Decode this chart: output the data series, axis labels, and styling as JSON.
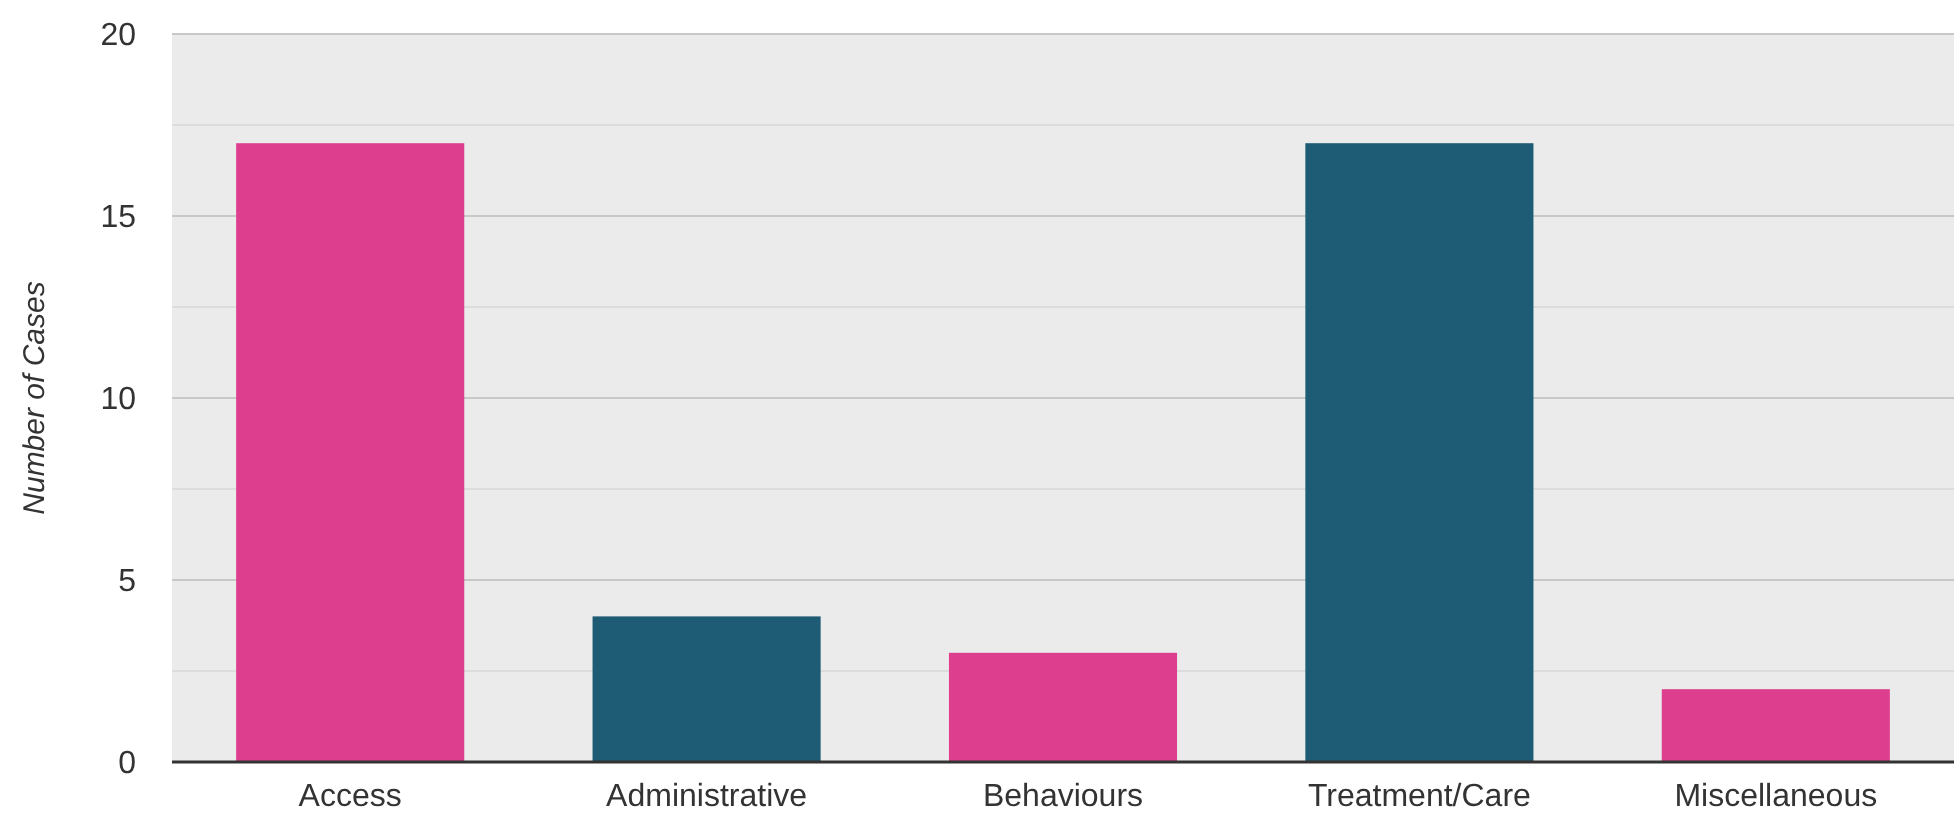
{
  "chart_data": {
    "type": "bar",
    "ylabel": "Number of Cases",
    "categories": [
      "Access",
      "Administrative",
      "Behaviours",
      "Treatment/Care",
      "Miscellaneous"
    ],
    "values": [
      17,
      4,
      3,
      17,
      2
    ],
    "colors": [
      "#dd3e8e",
      "#1d5c74",
      "#dd3e8e",
      "#1d5c74",
      "#dd3e8e"
    ],
    "ylim": [
      0,
      20
    ],
    "yticks": [
      0,
      {
        "value": 2.5,
        "label": null
      },
      5,
      {
        "value": 7.5,
        "label": null
      },
      10,
      {
        "value": 12.5,
        "label": null
      },
      15,
      {
        "value": 17.5,
        "label": null
      },
      20
    ],
    "grid": "y"
  }
}
